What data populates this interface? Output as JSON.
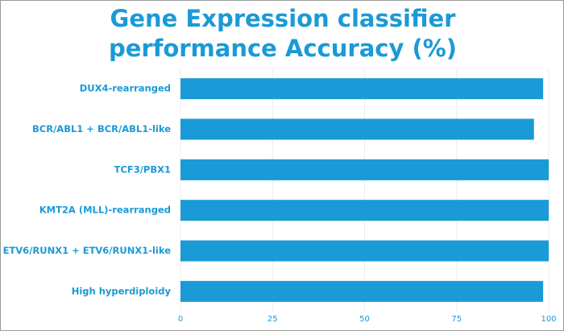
{
  "chart_data": {
    "type": "hbar",
    "title": "Gene Expression classifier performance Accuracy (%)",
    "categories": [
      "DUX4-rearranged",
      "BCR/ABL1 + BCR/ABL1-like",
      "TCF3/PBX1",
      "KMT2A (MLL)-rearranged",
      "ETV6/RUNX1 + ETV6/RUNX1-like",
      "High hyperdiploidy"
    ],
    "values": [
      98.5,
      96,
      100,
      100,
      100,
      98.5
    ],
    "color": "#1a9ad6",
    "xlim": [
      0,
      100
    ],
    "xticks": [
      0,
      25,
      50,
      75,
      100
    ],
    "grid": true
  }
}
